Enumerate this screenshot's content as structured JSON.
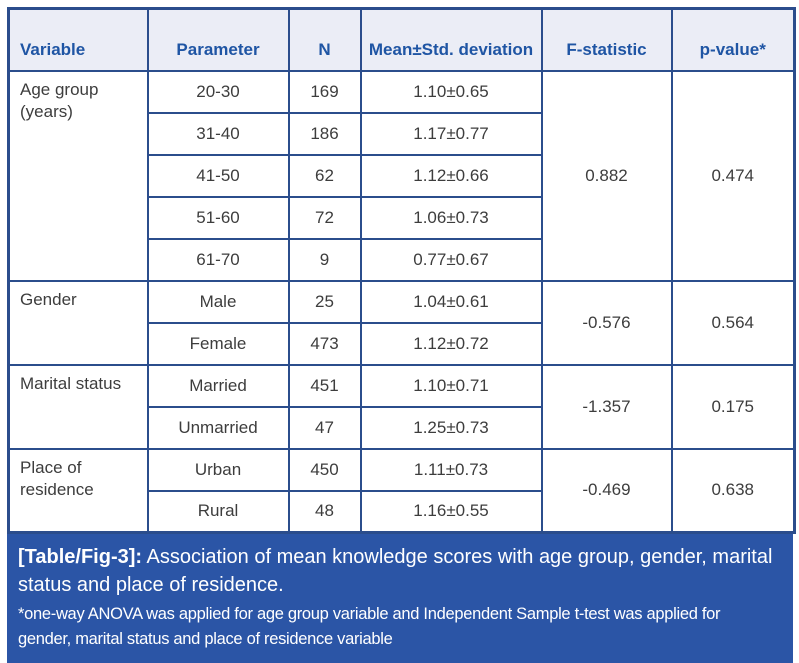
{
  "colors": {
    "border": "#2b4d8c",
    "header_bg": "#ebedf6",
    "header_text": "#1f55a4",
    "body_text": "#3d3d3d",
    "caption_bg": "#2b55a6",
    "caption_text": "#ffffff"
  },
  "chart_data": {
    "type": "table",
    "title": "[Table/Fig-3]: Association of mean knowledge scores with age group, gender, marital status and place of residence.",
    "headers": [
      "Variable",
      "Parameter",
      "N",
      "Mean±Std. deviation",
      "F-statistic",
      "p-value*"
    ],
    "sections": [
      {
        "variable": "Age group (years)",
        "rows": [
          {
            "parameter": "20-30",
            "n": "169",
            "mean": "1.10±0.65"
          },
          {
            "parameter": "31-40",
            "n": "186",
            "mean": "1.17±0.77"
          },
          {
            "parameter": "41-50",
            "n": "62",
            "mean": "1.12±0.66"
          },
          {
            "parameter": "51-60",
            "n": "72",
            "mean": "1.06±0.73"
          },
          {
            "parameter": "61-70",
            "n": "9",
            "mean": "0.77±0.67"
          }
        ],
        "f_statistic": "0.882",
        "p_value": "0.474"
      },
      {
        "variable": "Gender",
        "rows": [
          {
            "parameter": "Male",
            "n": "25",
            "mean": "1.04±0.61"
          },
          {
            "parameter": "Female",
            "n": "473",
            "mean": "1.12±0.72"
          }
        ],
        "f_statistic": "-0.576",
        "p_value": "0.564"
      },
      {
        "variable": "Marital status",
        "rows": [
          {
            "parameter": "Married",
            "n": "451",
            "mean": "1.10±0.71"
          },
          {
            "parameter": "Unmarried",
            "n": "47",
            "mean": "1.25±0.73"
          }
        ],
        "f_statistic": "-1.357",
        "p_value": "0.175"
      },
      {
        "variable": "Place of residence",
        "rows": [
          {
            "parameter": "Urban",
            "n": "450",
            "mean": "1.11±0.73"
          },
          {
            "parameter": "Rural",
            "n": "48",
            "mean": "1.16±0.55"
          }
        ],
        "f_statistic": "-0.469",
        "p_value": "0.638"
      }
    ]
  },
  "caption": {
    "label": "[Table/Fig-3]:",
    "text": " Association of mean knowledge scores with age group, gender, marital status and place of residence.",
    "footnote": "*one-way ANOVA was applied for age group variable and Independent Sample t-test was applied for gender, marital status and place of residence variable"
  }
}
